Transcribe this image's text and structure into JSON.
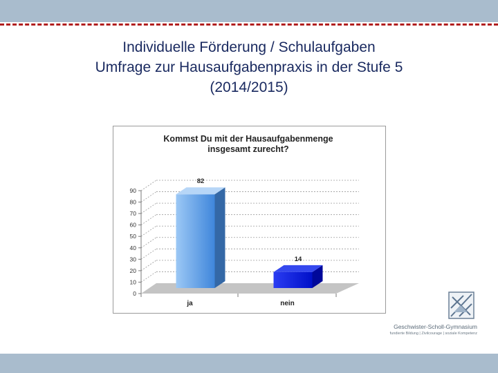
{
  "slide": {
    "title_lines": [
      "Individuelle Förderung / Schulaufgaben",
      "Umfrage zur Hausaufgabenpraxis in der Stufe 5",
      "(2014/2015)"
    ]
  },
  "logo": {
    "school_name": "Geschwister-Scholl-Gymnasium",
    "tagline": "fundierte Bildung | Zivilcourage | soziale Kompetenz"
  },
  "colors": {
    "header_bar": "#a9bccd",
    "dashed_rule": "#b01e1e",
    "bar_ja": "#6fa8e8",
    "bar_nein": "#0a1ee0"
  },
  "chart_data": {
    "type": "bar",
    "title": "Kommst Du mit der Hausaufgabenmenge insgesamt zurecht?",
    "title_lines": [
      "Kommst Du mit der Hausaufgabenmenge",
      "insgesamt zurecht?"
    ],
    "categories": [
      "ja",
      "nein"
    ],
    "values": [
      82,
      14
    ],
    "data_labels": [
      "82",
      "14"
    ],
    "ylim": [
      0,
      90
    ],
    "yticks": [
      0,
      10,
      20,
      30,
      40,
      50,
      60,
      70,
      80,
      90
    ],
    "grid": true,
    "style": "3d"
  }
}
